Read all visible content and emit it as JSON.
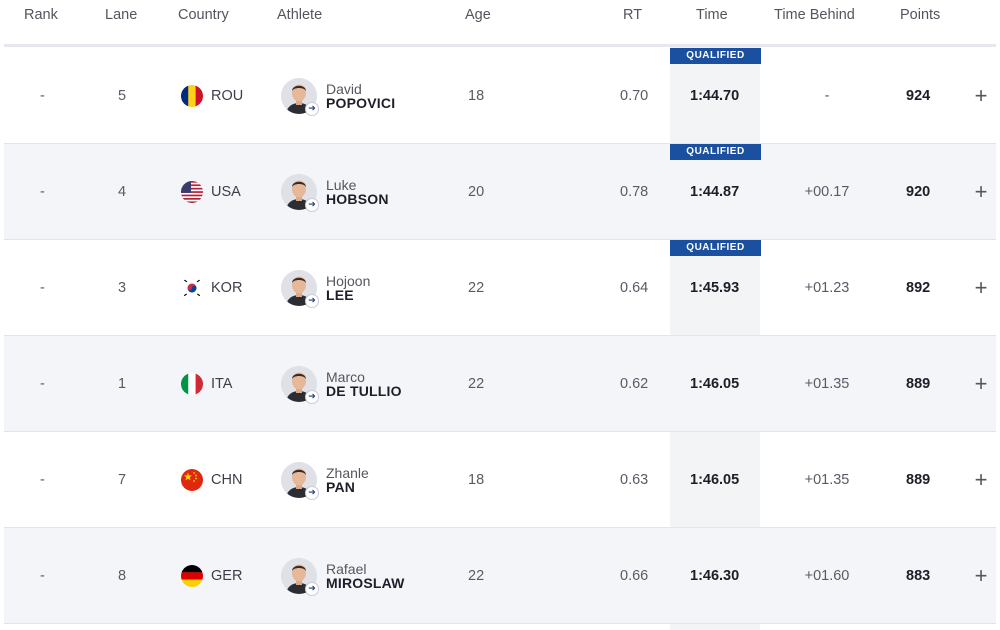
{
  "columns": {
    "rank": "Rank",
    "lane": "Lane",
    "country": "Country",
    "athlete": "Athlete",
    "age": "Age",
    "rt": "RT",
    "time": "Time",
    "time_behind": "Time Behind",
    "points": "Points"
  },
  "qualified_label": "QUALIFIED",
  "accent_color": "#1b4fa0",
  "rows": [
    {
      "rank": "-",
      "lane": "5",
      "country": "ROU",
      "flag_icon": "romania-flag-icon",
      "first": "David",
      "last": "POPOVICI",
      "age": "18",
      "rt": "0.70",
      "time": "1:44.70",
      "behind": "-",
      "points": "924",
      "qualified": true
    },
    {
      "rank": "-",
      "lane": "4",
      "country": "USA",
      "flag_icon": "usa-flag-icon",
      "first": "Luke",
      "last": "HOBSON",
      "age": "20",
      "rt": "0.78",
      "time": "1:44.87",
      "behind": "+00.17",
      "points": "920",
      "qualified": true
    },
    {
      "rank": "-",
      "lane": "3",
      "country": "KOR",
      "flag_icon": "korea-flag-icon",
      "first": "Hojoon",
      "last": "LEE",
      "age": "22",
      "rt": "0.64",
      "time": "1:45.93",
      "behind": "+01.23",
      "points": "892",
      "qualified": true
    },
    {
      "rank": "-",
      "lane": "1",
      "country": "ITA",
      "flag_icon": "italy-flag-icon",
      "first": "Marco",
      "last": "DE TULLIO",
      "age": "22",
      "rt": "0.62",
      "time": "1:46.05",
      "behind": "+01.35",
      "points": "889",
      "qualified": false
    },
    {
      "rank": "-",
      "lane": "7",
      "country": "CHN",
      "flag_icon": "china-flag-icon",
      "first": "Zhanle",
      "last": "PAN",
      "age": "18",
      "rt": "0.63",
      "time": "1:46.05",
      "behind": "+01.35",
      "points": "889",
      "qualified": false
    },
    {
      "rank": "-",
      "lane": "8",
      "country": "GER",
      "flag_icon": "germany-flag-icon",
      "first": "Rafael",
      "last": "MIROSLAW",
      "age": "22",
      "rt": "0.66",
      "time": "1:46.30",
      "behind": "+01.60",
      "points": "883",
      "qualified": false
    }
  ]
}
